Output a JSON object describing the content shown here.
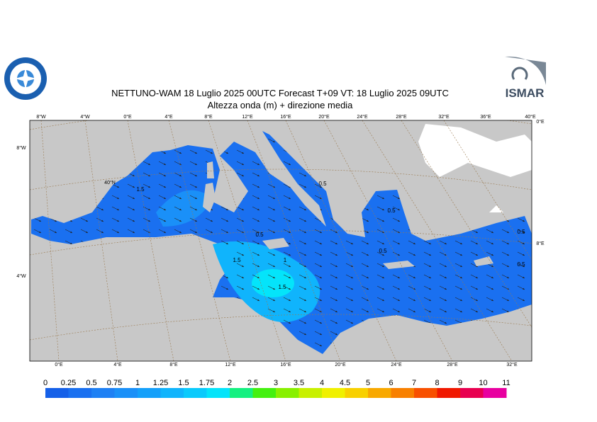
{
  "header": {
    "title": "NETTUNO-WAM  18  Luglio   2025 00UTC Forecast T+09 VT: 18  Luglio   2025 09UTC",
    "subtitle": "Altezza onda (m) + direzione media"
  },
  "logo": {
    "text": "ISMAR"
  },
  "map": {
    "top_labels": [
      "8°W",
      "4°W",
      "0°E",
      "4°E",
      "8°E",
      "12°E",
      "16°E",
      "20°E",
      "24°E",
      "28°E",
      "32°E",
      "36°E",
      "40°E"
    ],
    "bottom_labels": [
      "0°E",
      "4°E",
      "8°E",
      "12°E",
      "16°E",
      "20°E",
      "24°E",
      "28°E",
      "32°E"
    ],
    "side_labels": [
      "8°W",
      "40°N",
      "4°W",
      "0°E",
      "8°E"
    ],
    "contour_labels": [
      "1.5",
      "1.5",
      "0.5",
      "1",
      "1.5",
      "0.5",
      "0.5",
      "0.5",
      "0.5",
      "0.5"
    ]
  },
  "legend": {
    "labels": [
      "0",
      "0.25",
      "0.5",
      "0.75",
      "1",
      "1.25",
      "1.5",
      "1.75",
      "2",
      "2.5",
      "3",
      "3.5",
      "4",
      "4.5",
      "5",
      "6",
      "7",
      "8",
      "9",
      "10",
      "11"
    ],
    "colors": [
      "#1560e8",
      "#1a70f0",
      "#1e80f4",
      "#1a90f8",
      "#14a0fa",
      "#10b4fc",
      "#0acafc",
      "#04e4fa",
      "#14f080",
      "#44f010",
      "#88f000",
      "#c8f000",
      "#f0f000",
      "#f8d000",
      "#f8a800",
      "#f88000",
      "#f85000",
      "#f01800",
      "#e80050",
      "#e800a0"
    ]
  }
}
